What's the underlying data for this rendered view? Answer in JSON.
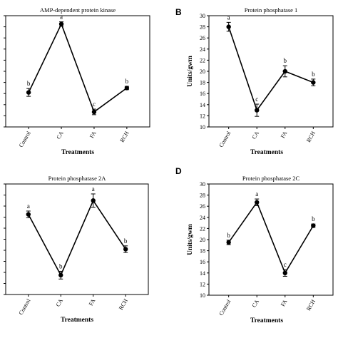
{
  "figure": {
    "type": "multi-panel line charts"
  },
  "chart_data": [
    {
      "panel": "A",
      "panel_letter": "",
      "type": "line",
      "title": "AMP-dependent protein kinase",
      "xlabel": "Treatments",
      "ylabel": "",
      "categories": [
        "Control",
        "CA",
        "FA",
        "RCH"
      ],
      "values": [
        16.2,
        28.5,
        12.7,
        17.0
      ],
      "error": [
        0.7,
        0.4,
        0.5,
        0.3
      ],
      "significance": [
        "b",
        "a",
        "c",
        "b"
      ],
      "ylim": [
        10,
        30
      ],
      "yticks": [
        10,
        12,
        14,
        16,
        18,
        20,
        22,
        24,
        26,
        28,
        30
      ],
      "ytick_labels_visible": false,
      "grid": false
    },
    {
      "panel": "B",
      "panel_letter": "B",
      "type": "line",
      "title": "Protein phosphatase 1",
      "xlabel": "Treatments",
      "ylabel": "Units/gwm",
      "categories": [
        "Control",
        "CA",
        "FA",
        "RCH"
      ],
      "values": [
        28.0,
        13.0,
        20.0,
        18.0
      ],
      "error": [
        0.8,
        1.1,
        1.0,
        0.6
      ],
      "significance": [
        "a",
        "c",
        "b",
        "b"
      ],
      "ylim": [
        10,
        30
      ],
      "yticks": [
        10,
        12,
        14,
        16,
        18,
        20,
        22,
        24,
        26,
        28,
        30
      ],
      "ytick_labels_visible": true,
      "grid": false
    },
    {
      "panel": "C",
      "panel_letter": "",
      "type": "line",
      "title": "Protein phosphatase 2A",
      "xlabel": "Treatments",
      "ylabel": "",
      "categories": [
        "Control",
        "CA",
        "FA",
        "RCH"
      ],
      "values": [
        24.5,
        13.5,
        27.0,
        18.2
      ],
      "error": [
        0.6,
        0.7,
        1.2,
        0.6
      ],
      "significance": [
        "a",
        "b",
        "a",
        "b"
      ],
      "ylim": [
        10,
        30
      ],
      "yticks": [
        10,
        12,
        14,
        16,
        18,
        20,
        22,
        24,
        26,
        28,
        30
      ],
      "ytick_labels_visible": false,
      "grid": false
    },
    {
      "panel": "D",
      "panel_letter": "D",
      "type": "line",
      "title": "Protein phosphatase 2C",
      "xlabel": "Treatments",
      "ylabel": "Units/gwm",
      "categories": [
        "Control",
        "CA",
        "FA",
        "RCH"
      ],
      "values": [
        19.5,
        26.7,
        14.0,
        22.5
      ],
      "error": [
        0.4,
        0.6,
        0.6,
        0.3
      ],
      "significance": [
        "b",
        "a",
        "c",
        "b"
      ],
      "ylim": [
        10,
        30
      ],
      "yticks": [
        10,
        12,
        14,
        16,
        18,
        20,
        22,
        24,
        26,
        28,
        30
      ],
      "ytick_labels_visible": true,
      "grid": false
    }
  ]
}
